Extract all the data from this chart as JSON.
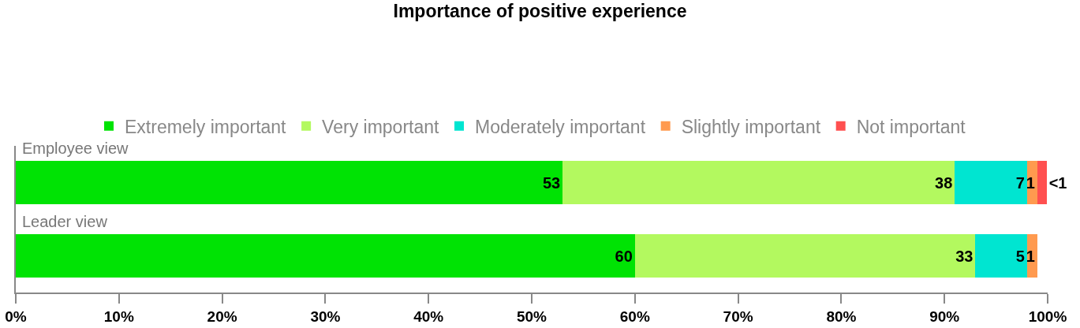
{
  "chart_data": {
    "type": "bar",
    "orientation": "horizontal",
    "stacked": true,
    "title": "Importance of positive experience",
    "categories": [
      "Employee view",
      "Leader view"
    ],
    "series": [
      {
        "name": "Extremely important",
        "color": "#00e304",
        "values": [
          53,
          60
        ],
        "value_labels": [
          "53",
          "60"
        ]
      },
      {
        "name": "Very important",
        "color": "#b3f95f",
        "values": [
          38,
          33
        ],
        "value_labels": [
          "38",
          "33"
        ]
      },
      {
        "name": "Moderately important",
        "color": "#00e5d1",
        "values": [
          7,
          5
        ],
        "value_labels": [
          "7",
          "5"
        ]
      },
      {
        "name": "Slightly important",
        "color": "#ff9a4f",
        "values": [
          1,
          1
        ],
        "value_labels": [
          "1",
          "1"
        ]
      },
      {
        "name": "Not important",
        "color": "#ff5050",
        "values": [
          0.9,
          null
        ],
        "value_labels": [
          "<1",
          null
        ]
      }
    ],
    "xlim": [
      0,
      100
    ],
    "xticks": [
      {
        "value": 0,
        "label": "0%"
      },
      {
        "value": 10,
        "label": "10%"
      },
      {
        "value": 20,
        "label": "20%"
      },
      {
        "value": 30,
        "label": "30%"
      },
      {
        "value": 40,
        "label": "40%"
      },
      {
        "value": 50,
        "label": "50%"
      },
      {
        "value": 60,
        "label": "60%"
      },
      {
        "value": 70,
        "label": "70%"
      },
      {
        "value": 80,
        "label": "80%"
      },
      {
        "value": 90,
        "label": "90%"
      },
      {
        "value": 100,
        "label": "100%"
      }
    ],
    "grid": false,
    "legend": "top"
  }
}
